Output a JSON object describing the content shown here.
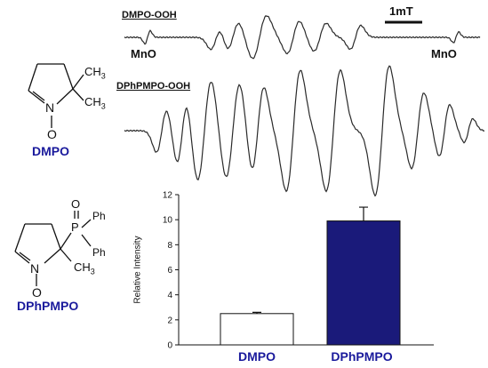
{
  "spectra": {
    "top_title": "DMPO-OOH",
    "scale_label": "1mT",
    "marker_left": "MnO",
    "marker_right": "MnO",
    "bottom_title": "DPhPMPO-OOH"
  },
  "structures": {
    "dmpo": {
      "atom_N": "N",
      "atom_O": "O",
      "methyl_top": "CH3",
      "methyl_bottom": "CH3",
      "name": "DMPO"
    },
    "dphpmpo": {
      "atom_N": "N",
      "atom_O": "O",
      "atom_P": "P",
      "phosphoryl_O": "O",
      "phenyl_top": "Ph",
      "phenyl_bottom": "Ph",
      "methyl": "CH3",
      "name": "DPhPMPO"
    }
  },
  "colors": {
    "label_blue": "#1a1a9c",
    "bar_fill": "#1a1a7a"
  },
  "chart_data": {
    "type": "bar",
    "categories": [
      "DMPO",
      "DPhPMPO"
    ],
    "values": [
      2.5,
      9.9
    ],
    "errors": [
      0.1,
      1.1
    ],
    "ylabel": "Relative Intensity",
    "xlabel": "",
    "ylim": [
      0,
      12
    ],
    "yticks": [
      0,
      2,
      4,
      6,
      8,
      10,
      12
    ],
    "bar_styles": [
      "white",
      "filled"
    ],
    "grid": false
  }
}
